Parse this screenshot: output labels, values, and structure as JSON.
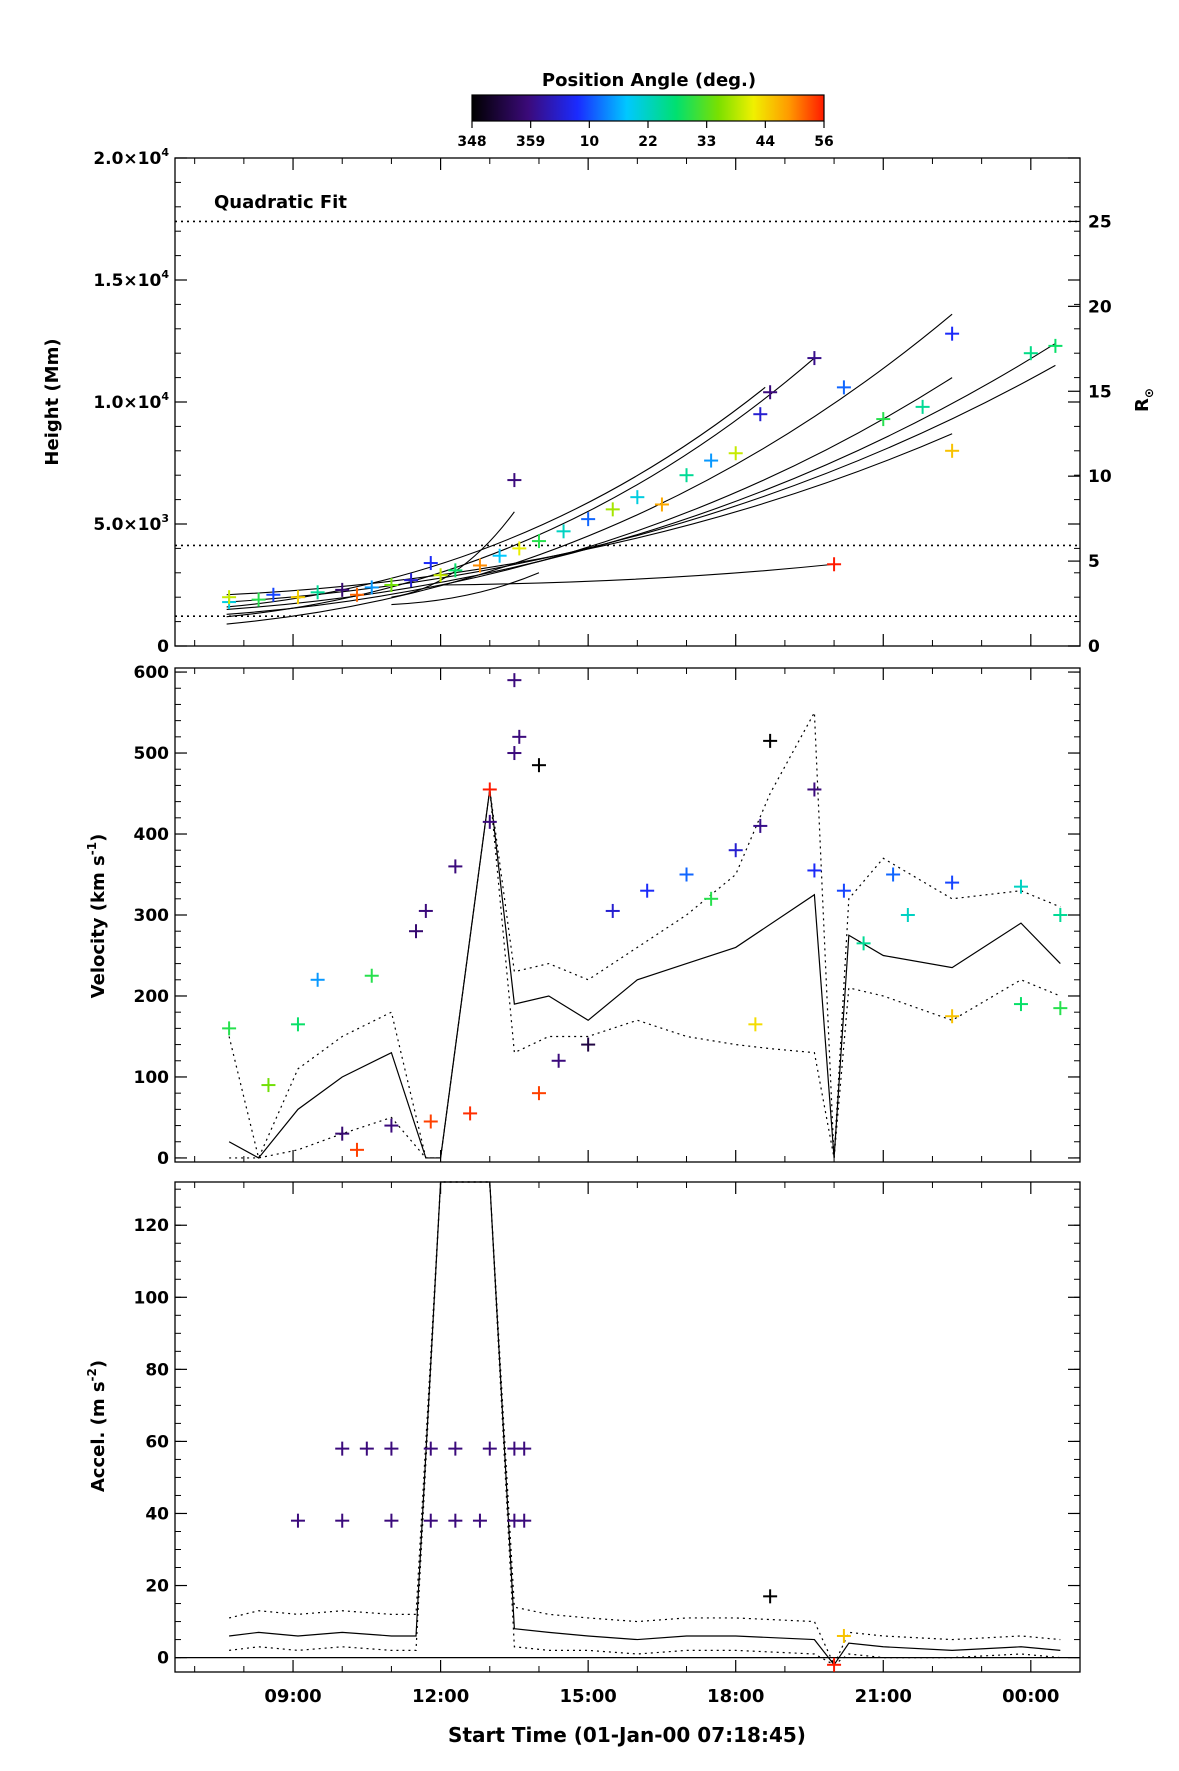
{
  "colorbar": {
    "title": "Position Angle (deg.)",
    "ticks": [
      "348",
      "359",
      "10",
      "22",
      "33",
      "44",
      "56"
    ],
    "range": [
      348,
      56
    ]
  },
  "xaxis": {
    "label": "Start Time (01-Jan-00 07:18:45)",
    "ticks": [
      {
        "label": "09:00",
        "hour": 9
      },
      {
        "label": "12:00",
        "hour": 12
      },
      {
        "label": "15:00",
        "hour": 15
      },
      {
        "label": "18:00",
        "hour": 18
      },
      {
        "label": "21:00",
        "hour": 21
      },
      {
        "label": "00:00",
        "hour": 24
      }
    ],
    "range_hours": [
      6.6,
      25.0
    ]
  },
  "panels": {
    "height": {
      "ylabel": "Height (Mm)",
      "y2label": "R",
      "y2label_sub": "⊙",
      "annotation": "Quadratic Fit",
      "yticks": [
        {
          "label": "0",
          "value": 0
        },
        {
          "label": "5.0×10",
          "sup": "3",
          "value": 5000
        },
        {
          "label": "1.0×10",
          "sup": "4",
          "value": 10000
        },
        {
          "label": "1.5×10",
          "sup": "4",
          "value": 15000
        },
        {
          "label": "2.0×10",
          "sup": "4",
          "value": 20000
        }
      ],
      "y2ticks": [
        "0",
        "5",
        "10",
        "15",
        "20",
        "25"
      ],
      "ylim": [
        0,
        20000
      ],
      "dotted_lines_mm": [
        1220,
        4120,
        17400
      ]
    },
    "velocity": {
      "ylabel": "Velocity (km s",
      "ylabel_sup": "-1",
      "ylabel_end": ")",
      "yticks": [
        "0",
        "100",
        "200",
        "300",
        "400",
        "500",
        "600"
      ],
      "ylim": [
        -5,
        605
      ]
    },
    "accel": {
      "ylabel": "Accel. (m s",
      "ylabel_sup": "-2",
      "ylabel_end": ")",
      "yticks": [
        "0",
        "20",
        "40",
        "60",
        "80",
        "100",
        "120"
      ],
      "ylim": [
        -4,
        132
      ]
    }
  },
  "chart_data": [
    {
      "type": "scatter",
      "name": "height",
      "x_unit": "hours since 01-Jan-00 00:00",
      "fit_lines": [
        {
          "x0": 7.65,
          "x1": 22.4,
          "y0": 900,
          "y1": 13600
        },
        {
          "x0": 7.65,
          "x1": 24.5,
          "y0": 1500,
          "y1": 12400
        },
        {
          "x0": 7.65,
          "x1": 24.5,
          "y0": 1800,
          "y1": 11500
        },
        {
          "x0": 7.65,
          "x1": 22.4,
          "y0": 1300,
          "y1": 11000
        },
        {
          "x0": 7.65,
          "x1": 22.4,
          "y0": 2100,
          "y1": 8700
        },
        {
          "x0": 7.65,
          "x1": 19.6,
          "y0": 1200,
          "y1": 11800
        },
        {
          "x0": 7.65,
          "x1": 18.6,
          "y0": 1600,
          "y1": 10600
        },
        {
          "x0": 11.0,
          "x1": 13.5,
          "y0": 2000,
          "y1": 5500
        },
        {
          "x0": 12.0,
          "x1": 20.0,
          "y0": 2500,
          "y1": 3350
        },
        {
          "x0": 11.0,
          "x1": 14.0,
          "y0": 1700,
          "y1": 3000
        }
      ],
      "points": [
        {
          "x": 7.7,
          "y": 1800,
          "pa": 20
        },
        {
          "x": 7.7,
          "y": 2000,
          "pa": 40
        },
        {
          "x": 8.3,
          "y": 1900,
          "pa": 30
        },
        {
          "x": 8.6,
          "y": 2100,
          "pa": 10
        },
        {
          "x": 9.1,
          "y": 2000,
          "pa": 45
        },
        {
          "x": 9.5,
          "y": 2200,
          "pa": 25
        },
        {
          "x": 10.0,
          "y": 2300,
          "pa": 358
        },
        {
          "x": 10.3,
          "y": 2100,
          "pa": 52
        },
        {
          "x": 10.6,
          "y": 2400,
          "pa": 15
        },
        {
          "x": 11.0,
          "y": 2500,
          "pa": 35
        },
        {
          "x": 11.4,
          "y": 2700,
          "pa": 5
        },
        {
          "x": 11.8,
          "y": 3400,
          "pa": 8
        },
        {
          "x": 12.0,
          "y": 2900,
          "pa": 40
        },
        {
          "x": 12.3,
          "y": 3100,
          "pa": 28
        },
        {
          "x": 12.8,
          "y": 3300,
          "pa": 50
        },
        {
          "x": 13.2,
          "y": 3700,
          "pa": 18
        },
        {
          "x": 13.5,
          "y": 6800,
          "pa": 359
        },
        {
          "x": 13.6,
          "y": 4000,
          "pa": 42
        },
        {
          "x": 14.0,
          "y": 4300,
          "pa": 30
        },
        {
          "x": 14.5,
          "y": 4700,
          "pa": 22
        },
        {
          "x": 15.0,
          "y": 5200,
          "pa": 12
        },
        {
          "x": 15.5,
          "y": 5600,
          "pa": 38
        },
        {
          "x": 16.0,
          "y": 6100,
          "pa": 20
        },
        {
          "x": 16.5,
          "y": 5800,
          "pa": 48
        },
        {
          "x": 17.0,
          "y": 7000,
          "pa": 25
        },
        {
          "x": 17.5,
          "y": 7600,
          "pa": 15
        },
        {
          "x": 18.0,
          "y": 7900,
          "pa": 40
        },
        {
          "x": 18.5,
          "y": 9500,
          "pa": 5
        },
        {
          "x": 18.7,
          "y": 10400,
          "pa": 359
        },
        {
          "x": 19.6,
          "y": 11800,
          "pa": 0
        },
        {
          "x": 20.0,
          "y": 3350,
          "pa": 56
        },
        {
          "x": 20.2,
          "y": 10600,
          "pa": 12
        },
        {
          "x": 21.0,
          "y": 9300,
          "pa": 30
        },
        {
          "x": 21.8,
          "y": 9800,
          "pa": 25
        },
        {
          "x": 22.4,
          "y": 12800,
          "pa": 8
        },
        {
          "x": 22.4,
          "y": 8000,
          "pa": 46
        },
        {
          "x": 24.0,
          "y": 12000,
          "pa": 26
        },
        {
          "x": 24.5,
          "y": 12300,
          "pa": 28
        }
      ]
    },
    {
      "type": "scatter",
      "name": "velocity",
      "x_unit": "hours since 01-Jan-00 00:00",
      "median_line": {
        "x": [
          7.7,
          8.3,
          9.1,
          10.0,
          11.0,
          11.7,
          12.0,
          13.0,
          13.5,
          14.2,
          15.0,
          16.0,
          17.0,
          18.0,
          19.6,
          20.0,
          20.3,
          21.0,
          22.4,
          23.8,
          24.6
        ],
        "y": [
          20,
          0,
          60,
          100,
          130,
          0,
          0,
          455,
          190,
          200,
          170,
          220,
          240,
          260,
          325,
          0,
          275,
          250,
          235,
          290,
          240
        ]
      },
      "outer_lines": [
        {
          "x": [
            7.7,
            8.3,
            9.1,
            10.0,
            11.0,
            11.7,
            12.0,
            13.0,
            13.5,
            14.2,
            15.0,
            16.0,
            17.0,
            18.0,
            18.7,
            19.6,
            20.0,
            20.3,
            21.0,
            22.4,
            23.8,
            24.6
          ],
          "y": [
            150,
            0,
            110,
            150,
            180,
            0,
            0,
            455,
            230,
            240,
            220,
            260,
            300,
            350,
            450,
            550,
            0,
            320,
            370,
            320,
            330,
            310
          ]
        },
        {
          "x": [
            7.7,
            8.3,
            9.1,
            10.0,
            11.0,
            11.7,
            12.0,
            13.0,
            13.5,
            14.2,
            15.0,
            16.0,
            17.0,
            18.0,
            18.7,
            19.6,
            20.0,
            20.3,
            21.0,
            22.4,
            23.8,
            24.6
          ],
          "y": [
            0,
            0,
            10,
            30,
            50,
            0,
            0,
            455,
            130,
            150,
            150,
            170,
            150,
            140,
            135,
            130,
            0,
            210,
            200,
            170,
            220,
            200
          ]
        }
      ],
      "points": [
        {
          "x": 7.7,
          "y": 160,
          "pa": 30
        },
        {
          "x": 8.5,
          "y": 90,
          "pa": 35
        },
        {
          "x": 9.1,
          "y": 165,
          "pa": 28
        },
        {
          "x": 9.5,
          "y": 220,
          "pa": 15
        },
        {
          "x": 10.0,
          "y": 30,
          "pa": 358
        },
        {
          "x": 10.3,
          "y": 10,
          "pa": 54
        },
        {
          "x": 10.6,
          "y": 225,
          "pa": 30
        },
        {
          "x": 11.0,
          "y": 40,
          "pa": 359
        },
        {
          "x": 11.5,
          "y": 280,
          "pa": 358
        },
        {
          "x": 11.7,
          "y": 305,
          "pa": 359
        },
        {
          "x": 11.8,
          "y": 45,
          "pa": 54
        },
        {
          "x": 12.3,
          "y": 360,
          "pa": 359
        },
        {
          "x": 12.6,
          "y": 55,
          "pa": 55
        },
        {
          "x": 13.0,
          "y": 455,
          "pa": 56
        },
        {
          "x": 13.0,
          "y": 415,
          "pa": 359
        },
        {
          "x": 13.5,
          "y": 590,
          "pa": 359
        },
        {
          "x": 13.6,
          "y": 520,
          "pa": 359
        },
        {
          "x": 13.5,
          "y": 500,
          "pa": 359
        },
        {
          "x": 14.0,
          "y": 485,
          "pa": 348
        },
        {
          "x": 14.0,
          "y": 80,
          "pa": 54
        },
        {
          "x": 14.4,
          "y": 120,
          "pa": 359
        },
        {
          "x": 15.0,
          "y": 140,
          "pa": 354
        },
        {
          "x": 15.5,
          "y": 305,
          "pa": 5
        },
        {
          "x": 16.2,
          "y": 330,
          "pa": 8
        },
        {
          "x": 17.0,
          "y": 350,
          "pa": 12
        },
        {
          "x": 17.5,
          "y": 320,
          "pa": 30
        },
        {
          "x": 18.0,
          "y": 380,
          "pa": 5
        },
        {
          "x": 18.5,
          "y": 410,
          "pa": 0
        },
        {
          "x": 18.7,
          "y": 515,
          "pa": 348
        },
        {
          "x": 18.4,
          "y": 165,
          "pa": 44
        },
        {
          "x": 19.6,
          "y": 455,
          "pa": 359
        },
        {
          "x": 19.6,
          "y": 355,
          "pa": 8
        },
        {
          "x": 20.2,
          "y": 330,
          "pa": 10
        },
        {
          "x": 20.6,
          "y": 265,
          "pa": 25
        },
        {
          "x": 21.2,
          "y": 350,
          "pa": 12
        },
        {
          "x": 21.5,
          "y": 300,
          "pa": 22
        },
        {
          "x": 22.4,
          "y": 340,
          "pa": 10
        },
        {
          "x": 22.4,
          "y": 175,
          "pa": 46
        },
        {
          "x": 23.8,
          "y": 335,
          "pa": 22
        },
        {
          "x": 23.8,
          "y": 190,
          "pa": 28
        },
        {
          "x": 24.6,
          "y": 300,
          "pa": 25
        },
        {
          "x": 24.6,
          "y": 185,
          "pa": 30
        }
      ]
    },
    {
      "type": "scatter",
      "name": "accel",
      "x_unit": "hours since 01-Jan-00 00:00",
      "median_line": {
        "x": [
          7.7,
          8.3,
          9.1,
          10.0,
          11.0,
          11.5,
          12.0,
          13.0,
          13.5,
          14.2,
          15.0,
          16.0,
          17.0,
          18.0,
          19.6,
          20.0,
          20.3,
          21.0,
          22.4,
          23.8,
          24.6
        ],
        "y": [
          6,
          7,
          6,
          7,
          6,
          6,
          140,
          140,
          8,
          7,
          6,
          5,
          6,
          6,
          5,
          -2,
          4,
          3,
          2,
          3,
          2
        ]
      },
      "outer_lines": [
        {
          "x": [
            7.7,
            8.3,
            9.1,
            10.0,
            11.0,
            11.5,
            12.0,
            13.0,
            13.5,
            14.2,
            15.0,
            16.0,
            17.0,
            18.0,
            19.6,
            20.0,
            20.3,
            21.0,
            22.4,
            23.8,
            24.6
          ],
          "y": [
            11,
            13,
            12,
            13,
            12,
            12,
            140,
            140,
            14,
            12,
            11,
            10,
            11,
            11,
            10,
            -2,
            7,
            6,
            5,
            6,
            5
          ]
        },
        {
          "x": [
            7.7,
            8.3,
            9.1,
            10.0,
            11.0,
            11.5,
            12.0,
            13.0,
            13.5,
            14.2,
            15.0,
            16.0,
            17.0,
            18.0,
            19.6,
            20.0,
            20.3,
            21.0,
            22.4,
            23.8,
            24.6
          ],
          "y": [
            2,
            3,
            2,
            3,
            2,
            2,
            140,
            140,
            3,
            2,
            2,
            1,
            2,
            2,
            1,
            -2,
            1,
            0,
            0,
            1,
            0
          ]
        }
      ],
      "points": [
        {
          "x": 9.1,
          "y": 38,
          "pa": 359
        },
        {
          "x": 10.0,
          "y": 38,
          "pa": 359
        },
        {
          "x": 10.0,
          "y": 58,
          "pa": 359
        },
        {
          "x": 10.5,
          "y": 58,
          "pa": 359
        },
        {
          "x": 11.0,
          "y": 58,
          "pa": 359
        },
        {
          "x": 11.0,
          "y": 38,
          "pa": 359
        },
        {
          "x": 11.8,
          "y": 58,
          "pa": 359
        },
        {
          "x": 11.8,
          "y": 38,
          "pa": 359
        },
        {
          "x": 12.3,
          "y": 58,
          "pa": 359
        },
        {
          "x": 12.3,
          "y": 38,
          "pa": 359
        },
        {
          "x": 12.8,
          "y": 38,
          "pa": 359
        },
        {
          "x": 13.0,
          "y": 58,
          "pa": 359
        },
        {
          "x": 13.5,
          "y": 58,
          "pa": 359
        },
        {
          "x": 13.5,
          "y": 38,
          "pa": 359
        },
        {
          "x": 13.7,
          "y": 58,
          "pa": 359
        },
        {
          "x": 13.7,
          "y": 38,
          "pa": 359
        },
        {
          "x": 18.7,
          "y": 17,
          "pa": 348
        },
        {
          "x": 20.0,
          "y": -2,
          "pa": 56
        },
        {
          "x": 20.2,
          "y": 6,
          "pa": 46
        }
      ]
    }
  ]
}
